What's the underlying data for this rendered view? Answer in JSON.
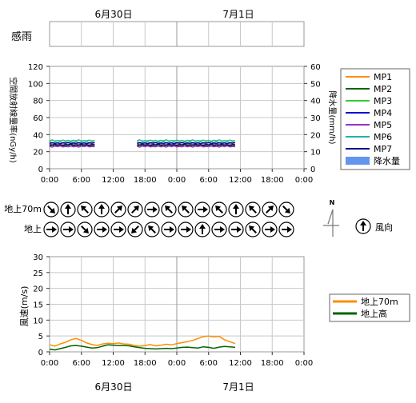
{
  "dates_top": [
    "6月30日",
    "7月1日"
  ],
  "dates_bottom": [
    "6月30日",
    "7月1日"
  ],
  "rain_sense_label": "感雨",
  "time_ticks": [
    "0:00",
    "6:00",
    "12:00",
    "18:00",
    "0:00",
    "6:00",
    "12:00",
    "18:00",
    "0:00"
  ],
  "colors": {
    "MP1": "#ff8c00",
    "MP2": "#006400",
    "MP3": "#32cd32",
    "MP4": "#0000cd",
    "MP5": "#9932cc",
    "MP6": "#20b2aa",
    "MP7": "#00008b",
    "rain": "#6495ed",
    "wind70": "#ff8c00",
    "windGround": "#006400",
    "grid": "#c8c8c8",
    "divider": "#999999"
  },
  "chart_data": [
    {
      "type": "line",
      "ylabel": "空間放射線量率(nGy/h)",
      "y2label": "降水量(mm/h)",
      "ylim": [
        0,
        120
      ],
      "y2lim": [
        0,
        60
      ],
      "yticks": [
        "0",
        "20",
        "40",
        "60",
        "80",
        "100",
        "120"
      ],
      "y2ticks": [
        "0",
        "10",
        "20",
        "30",
        "40",
        "50",
        "60"
      ],
      "xlim_hours": [
        0,
        48
      ],
      "gap_hours": [
        8.5,
        16.5
      ],
      "end_hour": 35,
      "grid": true,
      "legend_position": "right",
      "series": [
        {
          "name": "MP1",
          "level": 29
        },
        {
          "name": "MP2",
          "level": 27
        },
        {
          "name": "MP3",
          "level": 31
        },
        {
          "name": "MP4",
          "level": 30
        },
        {
          "name": "MP5",
          "level": 26
        },
        {
          "name": "MP6",
          "level": 33
        },
        {
          "name": "MP7",
          "level": 28
        }
      ],
      "legend_rain": "降水量",
      "rain_values": []
    },
    {
      "type": "line",
      "ylabel": "風速(m/s)",
      "ylim": [
        0,
        30
      ],
      "yticks": [
        "0",
        "5",
        "10",
        "15",
        "20",
        "25",
        "30"
      ],
      "xlim_hours": [
        0,
        48
      ],
      "grid": true,
      "legend_position": "right",
      "series": [
        {
          "name": "地上70m",
          "x": [
            0,
            1,
            2,
            3,
            4,
            5,
            6,
            7,
            8,
            9,
            10,
            11,
            12,
            13,
            14,
            15,
            16,
            17,
            18,
            19,
            20,
            21,
            22,
            23,
            24,
            25,
            26,
            27,
            28,
            29,
            30,
            31,
            32,
            33,
            34,
            35
          ],
          "values": [
            2.2,
            1.8,
            2.5,
            3.0,
            3.8,
            4.2,
            3.6,
            2.8,
            2.3,
            2.0,
            2.5,
            2.7,
            2.6,
            2.8,
            2.5,
            2.4,
            2.0,
            1.8,
            2.0,
            2.3,
            1.9,
            2.1,
            2.4,
            2.2,
            2.6,
            2.9,
            3.2,
            3.6,
            4.2,
            4.8,
            5.0,
            4.7,
            4.9,
            3.8,
            3.2,
            2.6
          ]
        },
        {
          "name": "地上高",
          "x": [
            0,
            1,
            2,
            3,
            4,
            5,
            6,
            7,
            8,
            9,
            10,
            11,
            12,
            13,
            14,
            15,
            16,
            17,
            18,
            19,
            20,
            21,
            22,
            23,
            24,
            25,
            26,
            27,
            28,
            29,
            30,
            31,
            32,
            33,
            34,
            35
          ],
          "values": [
            0.8,
            0.6,
            1.0,
            1.4,
            1.9,
            2.0,
            1.8,
            1.5,
            1.2,
            1.3,
            1.8,
            2.2,
            2.1,
            2.0,
            2.0,
            1.9,
            1.6,
            1.3,
            1.1,
            1.0,
            0.9,
            1.0,
            1.1,
            1.0,
            1.2,
            1.4,
            1.5,
            1.3,
            1.2,
            1.6,
            1.4,
            1.1,
            1.5,
            1.7,
            1.6,
            1.4
          ]
        }
      ]
    }
  ],
  "wind_rows": {
    "labels": [
      "地上70m",
      "地上"
    ],
    "upper_dirs": [
      "southeast",
      "north",
      "northwest",
      "north",
      "northeast",
      "northeast",
      "east",
      "northwest",
      "northwest",
      "east",
      "northwest",
      "north",
      "northwest",
      "northeast",
      "southeast"
    ],
    "lower_dirs": [
      "east",
      "east",
      "southeast",
      "east",
      "east",
      "southwest",
      "northwest",
      "east",
      "east",
      "north",
      "east",
      "east",
      "northwest",
      "east",
      "east"
    ]
  },
  "compass_label": "N",
  "wind_legend_label": "風向"
}
